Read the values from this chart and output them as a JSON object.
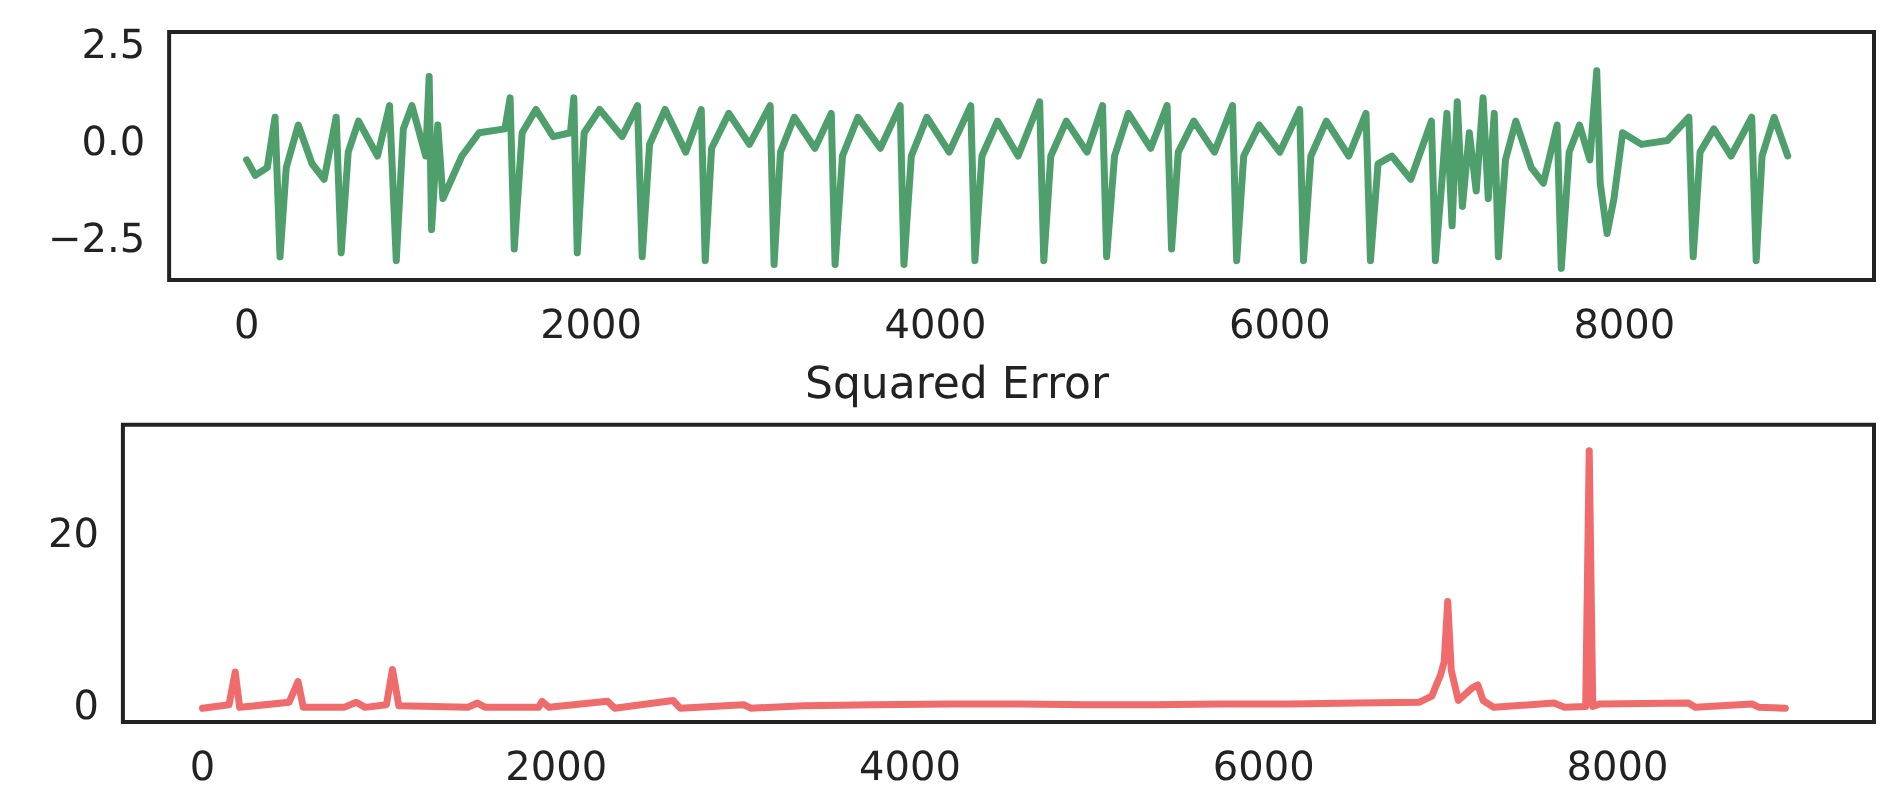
{
  "chart_data": [
    {
      "type": "line",
      "color": "#4f9f6c",
      "x": [
        0,
        50,
        120,
        165,
        194,
        230,
        300,
        380,
        450,
        520,
        549,
        590,
        650,
        760,
        830,
        869,
        910,
        960,
        1040,
        1060,
        1074,
        1110,
        1140,
        1250,
        1350,
        1500,
        1530,
        1554,
        1600,
        1680,
        1780,
        1880,
        1900,
        1920,
        1960,
        2050,
        2180,
        2270,
        2297,
        2340,
        2430,
        2550,
        2640,
        2663,
        2700,
        2800,
        2920,
        3040,
        3063,
        3100,
        3180,
        3300,
        3395,
        3417,
        3460,
        3550,
        3680,
        3795,
        3817,
        3860,
        3950,
        4080,
        4205,
        4229,
        4270,
        4360,
        4480,
        4605,
        4629,
        4670,
        4760,
        4880,
        4970,
        4994,
        5040,
        5120,
        5250,
        5345,
        5371,
        5410,
        5500,
        5620,
        5725,
        5749,
        5790,
        5880,
        6000,
        6115,
        6137,
        6180,
        6270,
        6400,
        6500,
        6526,
        6570,
        6650,
        6760,
        6880,
        6903,
        6940,
        6970,
        7000,
        7030,
        7060,
        7100,
        7140,
        7180,
        7210,
        7245,
        7269,
        7310,
        7370,
        7460,
        7530,
        7610,
        7634,
        7680,
        7740,
        7800,
        7840,
        7860,
        7900,
        7940,
        7990,
        8100,
        8250,
        8375,
        8400,
        8440,
        8520,
        8620,
        8740,
        8766,
        8800,
        8870,
        8949
      ],
      "values": [
        -0.4,
        -0.8,
        -0.6,
        0.7,
        -2.9,
        -0.6,
        0.5,
        -0.5,
        -0.9,
        0.7,
        -2.8,
        -0.2,
        0.6,
        -0.3,
        1.0,
        -3.0,
        0.4,
        1.0,
        -0.3,
        1.75,
        -2.2,
        0.5,
        -1.4,
        -0.3,
        0.3,
        0.4,
        1.2,
        -2.7,
        0.3,
        0.9,
        0.2,
        0.3,
        1.2,
        -2.8,
        0.3,
        0.9,
        0.2,
        1.0,
        -2.9,
        0.0,
        0.9,
        -0.2,
        0.9,
        -3.0,
        -0.1,
        0.8,
        0.0,
        1.0,
        -3.1,
        -0.2,
        0.7,
        -0.1,
        0.8,
        -3.1,
        -0.3,
        0.7,
        -0.1,
        1.0,
        -3.1,
        -0.3,
        0.7,
        -0.2,
        1.0,
        -3.0,
        -0.3,
        0.6,
        -0.3,
        1.1,
        -3.0,
        -0.3,
        0.6,
        -0.2,
        1.0,
        -2.9,
        -0.3,
        0.8,
        -0.1,
        1.0,
        -2.7,
        -0.2,
        0.6,
        -0.2,
        1.0,
        -3.0,
        -0.3,
        0.5,
        -0.2,
        0.9,
        -3.0,
        -0.3,
        0.6,
        -0.3,
        0.8,
        -3.0,
        -0.5,
        -0.3,
        -0.9,
        0.6,
        -3.0,
        -1.0,
        0.8,
        -2.1,
        1.1,
        -1.6,
        0.3,
        -1.2,
        1.2,
        -1.4,
        0.8,
        -2.9,
        -0.4,
        0.6,
        -0.6,
        -1.0,
        0.5,
        -3.2,
        -0.2,
        0.5,
        -0.4,
        1.9,
        -1.0,
        -2.3,
        -1.4,
        0.3,
        0.0,
        0.1,
        0.7,
        -2.9,
        -0.2,
        0.4,
        -0.3,
        0.7,
        -3.0,
        -0.3,
        0.7,
        -0.3
      ],
      "xlim": [
        -450,
        9450
      ],
      "xticks": [
        0,
        2000,
        4000,
        6000,
        8000
      ],
      "ylim": [
        -3.5,
        2.9
      ],
      "yticks": [
        {
          "value": -2.5,
          "label": "−2.5"
        },
        {
          "value": 0,
          "label": "0.0"
        },
        {
          "value": 2.5,
          "label": "2.5"
        }
      ]
    },
    {
      "type": "line",
      "title": "Squared Error",
      "color": "#f06b6b",
      "x": [
        0,
        150,
        185,
        210,
        490,
        540,
        570,
        800,
        869,
        920,
        1040,
        1074,
        1110,
        1500,
        1554,
        1600,
        1900,
        1920,
        1960,
        2290,
        2330,
        2660,
        2700,
        3060,
        3100,
        3400,
        3800,
        4230,
        4630,
        5000,
        5370,
        5750,
        6140,
        6530,
        6880,
        6950,
        7000,
        7020,
        7040,
        7060,
        7100,
        7180,
        7210,
        7240,
        7300,
        7640,
        7700,
        7820,
        7840,
        7860,
        7900,
        8400,
        8440,
        8760,
        8800,
        8949
      ],
      "values": [
        0.1,
        0.5,
        4.3,
        0.2,
        0.8,
        3.2,
        0.2,
        0.2,
        0.8,
        0.2,
        0.5,
        4.6,
        0.4,
        0.2,
        0.7,
        0.2,
        0.2,
        0.9,
        0.2,
        0.9,
        0.1,
        1.0,
        0.1,
        0.5,
        0.1,
        0.4,
        0.5,
        0.6,
        0.6,
        0.5,
        0.5,
        0.6,
        0.6,
        0.7,
        0.8,
        1.5,
        4.0,
        5.5,
        12.5,
        4.5,
        1.0,
        2.5,
        2.8,
        1.0,
        0.2,
        0.7,
        0.2,
        0.3,
        30,
        0.3,
        0.6,
        0.7,
        0.2,
        0.6,
        0.2,
        0.1
      ],
      "xlim": [
        -450,
        9450
      ],
      "xticks": [
        0,
        2000,
        4000,
        6000,
        8000
      ],
      "ylim": [
        -1.5,
        33
      ],
      "yticks": [
        0,
        20
      ]
    }
  ]
}
